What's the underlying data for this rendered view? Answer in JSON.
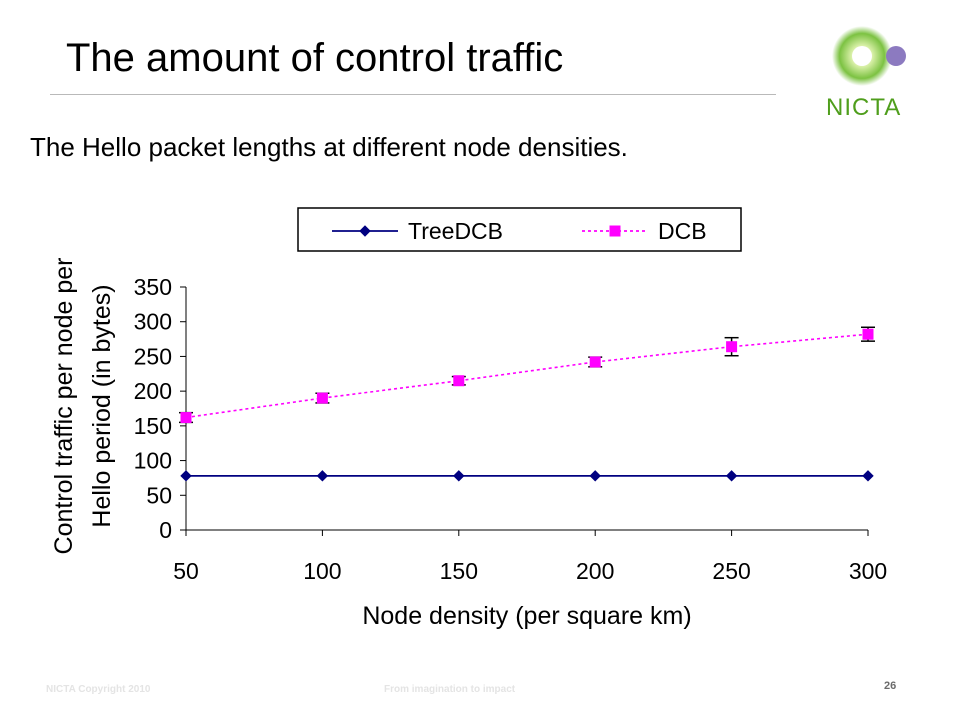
{
  "slide": {
    "title": "The amount of control traffic",
    "subtitle": "The Hello packet lengths at different node densities.",
    "logo_text": "NICTA",
    "footer_left": "NICTA Copyright 2010",
    "footer_mid": "From imagination to impact",
    "page_number": "26"
  },
  "colors": {
    "treedcb": "#000080",
    "dcb": "#ff00ff",
    "logo_green": "#4f9e1c",
    "logo_purple": "#8c7ac0"
  },
  "chart_data": {
    "type": "line",
    "title": "",
    "xlabel": "Node density (per square km)",
    "ylabel_line1": "Control traffic per node per",
    "ylabel_line2": "Hello period  (in bytes)",
    "x": [
      50,
      100,
      150,
      200,
      250,
      300
    ],
    "xticks": [
      "50",
      "100",
      "150",
      "200",
      "250",
      "300"
    ],
    "yticks": [
      "0",
      "50",
      "100",
      "150",
      "200",
      "250",
      "300",
      "350"
    ],
    "ylim": [
      0,
      350
    ],
    "grid": false,
    "legend_position": "top",
    "series": [
      {
        "name": "TreeDCB",
        "values": [
          78,
          78,
          78,
          78,
          78,
          78
        ],
        "marker": "diamond",
        "line_style": "solid"
      },
      {
        "name": "DCB",
        "values": [
          162,
          190,
          215,
          242,
          264,
          282
        ],
        "error": [
          7,
          7,
          6,
          7,
          13,
          10
        ],
        "marker": "square",
        "line_style": "dashed"
      }
    ]
  }
}
